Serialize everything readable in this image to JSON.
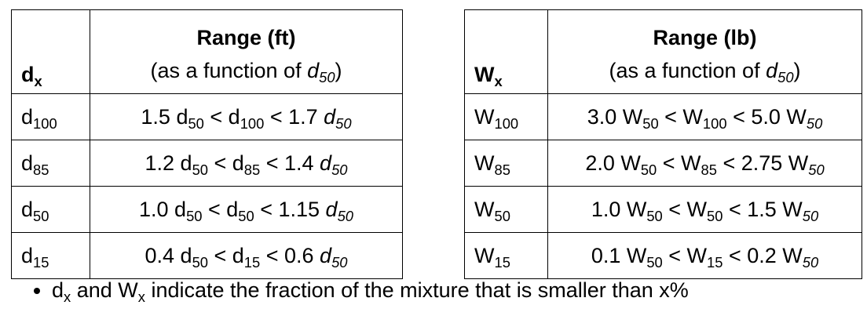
{
  "tables": [
    {
      "header": [
        [
          [
            {
              "text": "d",
              "bold": true
            },
            {
              "text": "x",
              "bold": true,
              "sub": true
            }
          ]
        ],
        [
          [
            {
              "text": "Range (ft)",
              "bold": true
            }
          ],
          [
            {
              "text": "(as a function of "
            },
            {
              "text": "d",
              "italic": true
            },
            {
              "text": "50",
              "italic": true,
              "sub": true
            },
            {
              "text": ")"
            }
          ]
        ]
      ],
      "rows": [
        [
          [
            [
              {
                "text": "d"
              },
              {
                "text": "100",
                "sub": true
              }
            ]
          ],
          [
            [
              {
                "text": "1.5 d"
              },
              {
                "text": "50",
                "sub": true
              },
              {
                "text": " < d"
              },
              {
                "text": "100",
                "sub": true
              },
              {
                "text": " < 1.7 "
              },
              {
                "text": "d",
                "italic": true
              },
              {
                "text": "50",
                "italic": true,
                "sub": true
              }
            ]
          ]
        ],
        [
          [
            [
              {
                "text": "d"
              },
              {
                "text": "85",
                "sub": true
              }
            ]
          ],
          [
            [
              {
                "text": "1.2 d"
              },
              {
                "text": "50",
                "sub": true
              },
              {
                "text": " < d"
              },
              {
                "text": "85",
                "sub": true
              },
              {
                "text": " < 1.4 "
              },
              {
                "text": "d",
                "italic": true
              },
              {
                "text": "50",
                "italic": true,
                "sub": true
              }
            ]
          ]
        ],
        [
          [
            [
              {
                "text": "d"
              },
              {
                "text": "50",
                "sub": true
              }
            ]
          ],
          [
            [
              {
                "text": "1.0 d"
              },
              {
                "text": "50",
                "sub": true
              },
              {
                "text": " < d"
              },
              {
                "text": "50",
                "sub": true
              },
              {
                "text": " < 1.15 "
              },
              {
                "text": "d",
                "italic": true
              },
              {
                "text": "50",
                "italic": true,
                "sub": true
              }
            ]
          ]
        ],
        [
          [
            [
              {
                "text": "d"
              },
              {
                "text": "15",
                "sub": true
              }
            ]
          ],
          [
            [
              {
                "text": "0.4 d"
              },
              {
                "text": "50",
                "sub": true
              },
              {
                "text": " < d"
              },
              {
                "text": "15",
                "sub": true
              },
              {
                "text": " < 0.6 "
              },
              {
                "text": "d",
                "italic": true
              },
              {
                "text": "50",
                "italic": true,
                "sub": true
              }
            ]
          ]
        ]
      ]
    },
    {
      "header": [
        [
          [
            {
              "text": "W",
              "bold": true
            },
            {
              "text": "x",
              "bold": true,
              "sub": true
            }
          ]
        ],
        [
          [
            {
              "text": "Range (lb)",
              "bold": true
            }
          ],
          [
            {
              "text": "(as a function of "
            },
            {
              "text": "d",
              "italic": true
            },
            {
              "text": "50",
              "italic": true,
              "sub": true
            },
            {
              "text": ")"
            }
          ]
        ]
      ],
      "rows": [
        [
          [
            [
              {
                "text": "W"
              },
              {
                "text": "100",
                "sub": true
              }
            ]
          ],
          [
            [
              {
                "text": "3.0 W"
              },
              {
                "text": "50",
                "sub": true
              },
              {
                "text": " < W"
              },
              {
                "text": "100",
                "sub": true
              },
              {
                "text": " < 5.0 W"
              },
              {
                "text": "50",
                "italic": true,
                "sub": true
              }
            ]
          ]
        ],
        [
          [
            [
              {
                "text": "W"
              },
              {
                "text": "85",
                "sub": true
              }
            ]
          ],
          [
            [
              {
                "text": "2.0 W"
              },
              {
                "text": "50",
                "sub": true
              },
              {
                "text": " < W"
              },
              {
                "text": "85",
                "sub": true
              },
              {
                "text": " < 2.75 W"
              },
              {
                "text": "50",
                "italic": true,
                "sub": true
              }
            ]
          ]
        ],
        [
          [
            [
              {
                "text": "W"
              },
              {
                "text": "50",
                "sub": true
              }
            ]
          ],
          [
            [
              {
                "text": "1.0 W"
              },
              {
                "text": "50",
                "sub": true
              },
              {
                "text": " < W"
              },
              {
                "text": "50",
                "sub": true
              },
              {
                "text": " < 1.5 W"
              },
              {
                "text": "50",
                "italic": true,
                "sub": true
              }
            ]
          ]
        ],
        [
          [
            [
              {
                "text": "W"
              },
              {
                "text": "15",
                "sub": true
              }
            ]
          ],
          [
            [
              {
                "text": "0.1 W"
              },
              {
                "text": "50",
                "sub": true
              },
              {
                "text": " < W"
              },
              {
                "text": "15",
                "sub": true
              },
              {
                "text": " < 0.2 W"
              },
              {
                "text": "50",
                "italic": true,
                "sub": true
              }
            ]
          ]
        ]
      ]
    }
  ],
  "note": [
    {
      "text": "d"
    },
    {
      "text": "x",
      "sub": true
    },
    {
      "text": " and W"
    },
    {
      "text": "x",
      "sub": true
    },
    {
      "text": " indicate the fraction of the mixture that is smaller than x%"
    }
  ]
}
